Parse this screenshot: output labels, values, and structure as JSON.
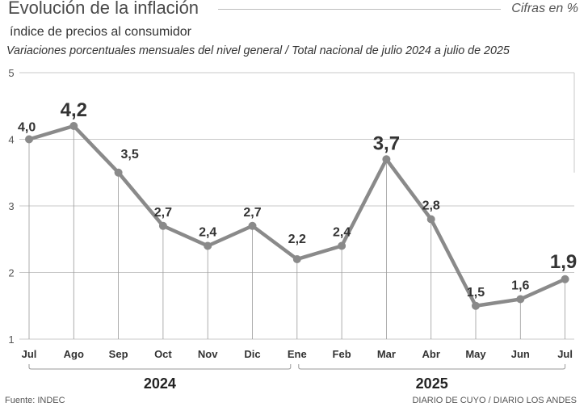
{
  "header": {
    "title": "Evolución de la inflación",
    "units_note": "Cifras en %",
    "subtitle": "índice de precios al consumidor",
    "description": "Variaciones porcentuales mensuales del nivel general / Total nacional de julio 2024 a julio de 2025"
  },
  "footer": {
    "source": "Fuente: INDEC",
    "credit": "DIARIO DE CUYO / DIARIO LOS ANDES"
  },
  "chart_data": {
    "type": "line",
    "categories": [
      "Jul",
      "Ago",
      "Sep",
      "Oct",
      "Nov",
      "Dic",
      "Ene",
      "Feb",
      "Mar",
      "Abr",
      "May",
      "Jun",
      "Jul"
    ],
    "values": [
      4.0,
      4.2,
      3.5,
      2.7,
      2.4,
      2.7,
      2.2,
      2.4,
      3.7,
      2.8,
      1.5,
      1.6,
      1.9
    ],
    "value_labels": [
      "4,0",
      "4,2",
      "3,5",
      "2,7",
      "2,4",
      "2,7",
      "2,2",
      "2,4",
      "3,7",
      "2,8",
      "1,5",
      "1,6",
      "1,9"
    ],
    "highlighted": [
      1,
      8,
      12
    ],
    "y_ticks": [
      "1",
      "2",
      "3",
      "4",
      "5"
    ],
    "ylim": [
      1,
      5
    ],
    "groups": [
      {
        "label": "2024",
        "start": 0,
        "end": 6
      },
      {
        "label": "2025",
        "start": 6,
        "end": 12
      }
    ],
    "line_color": "#8a8a8a",
    "grid_color": "#c8c8c8"
  }
}
